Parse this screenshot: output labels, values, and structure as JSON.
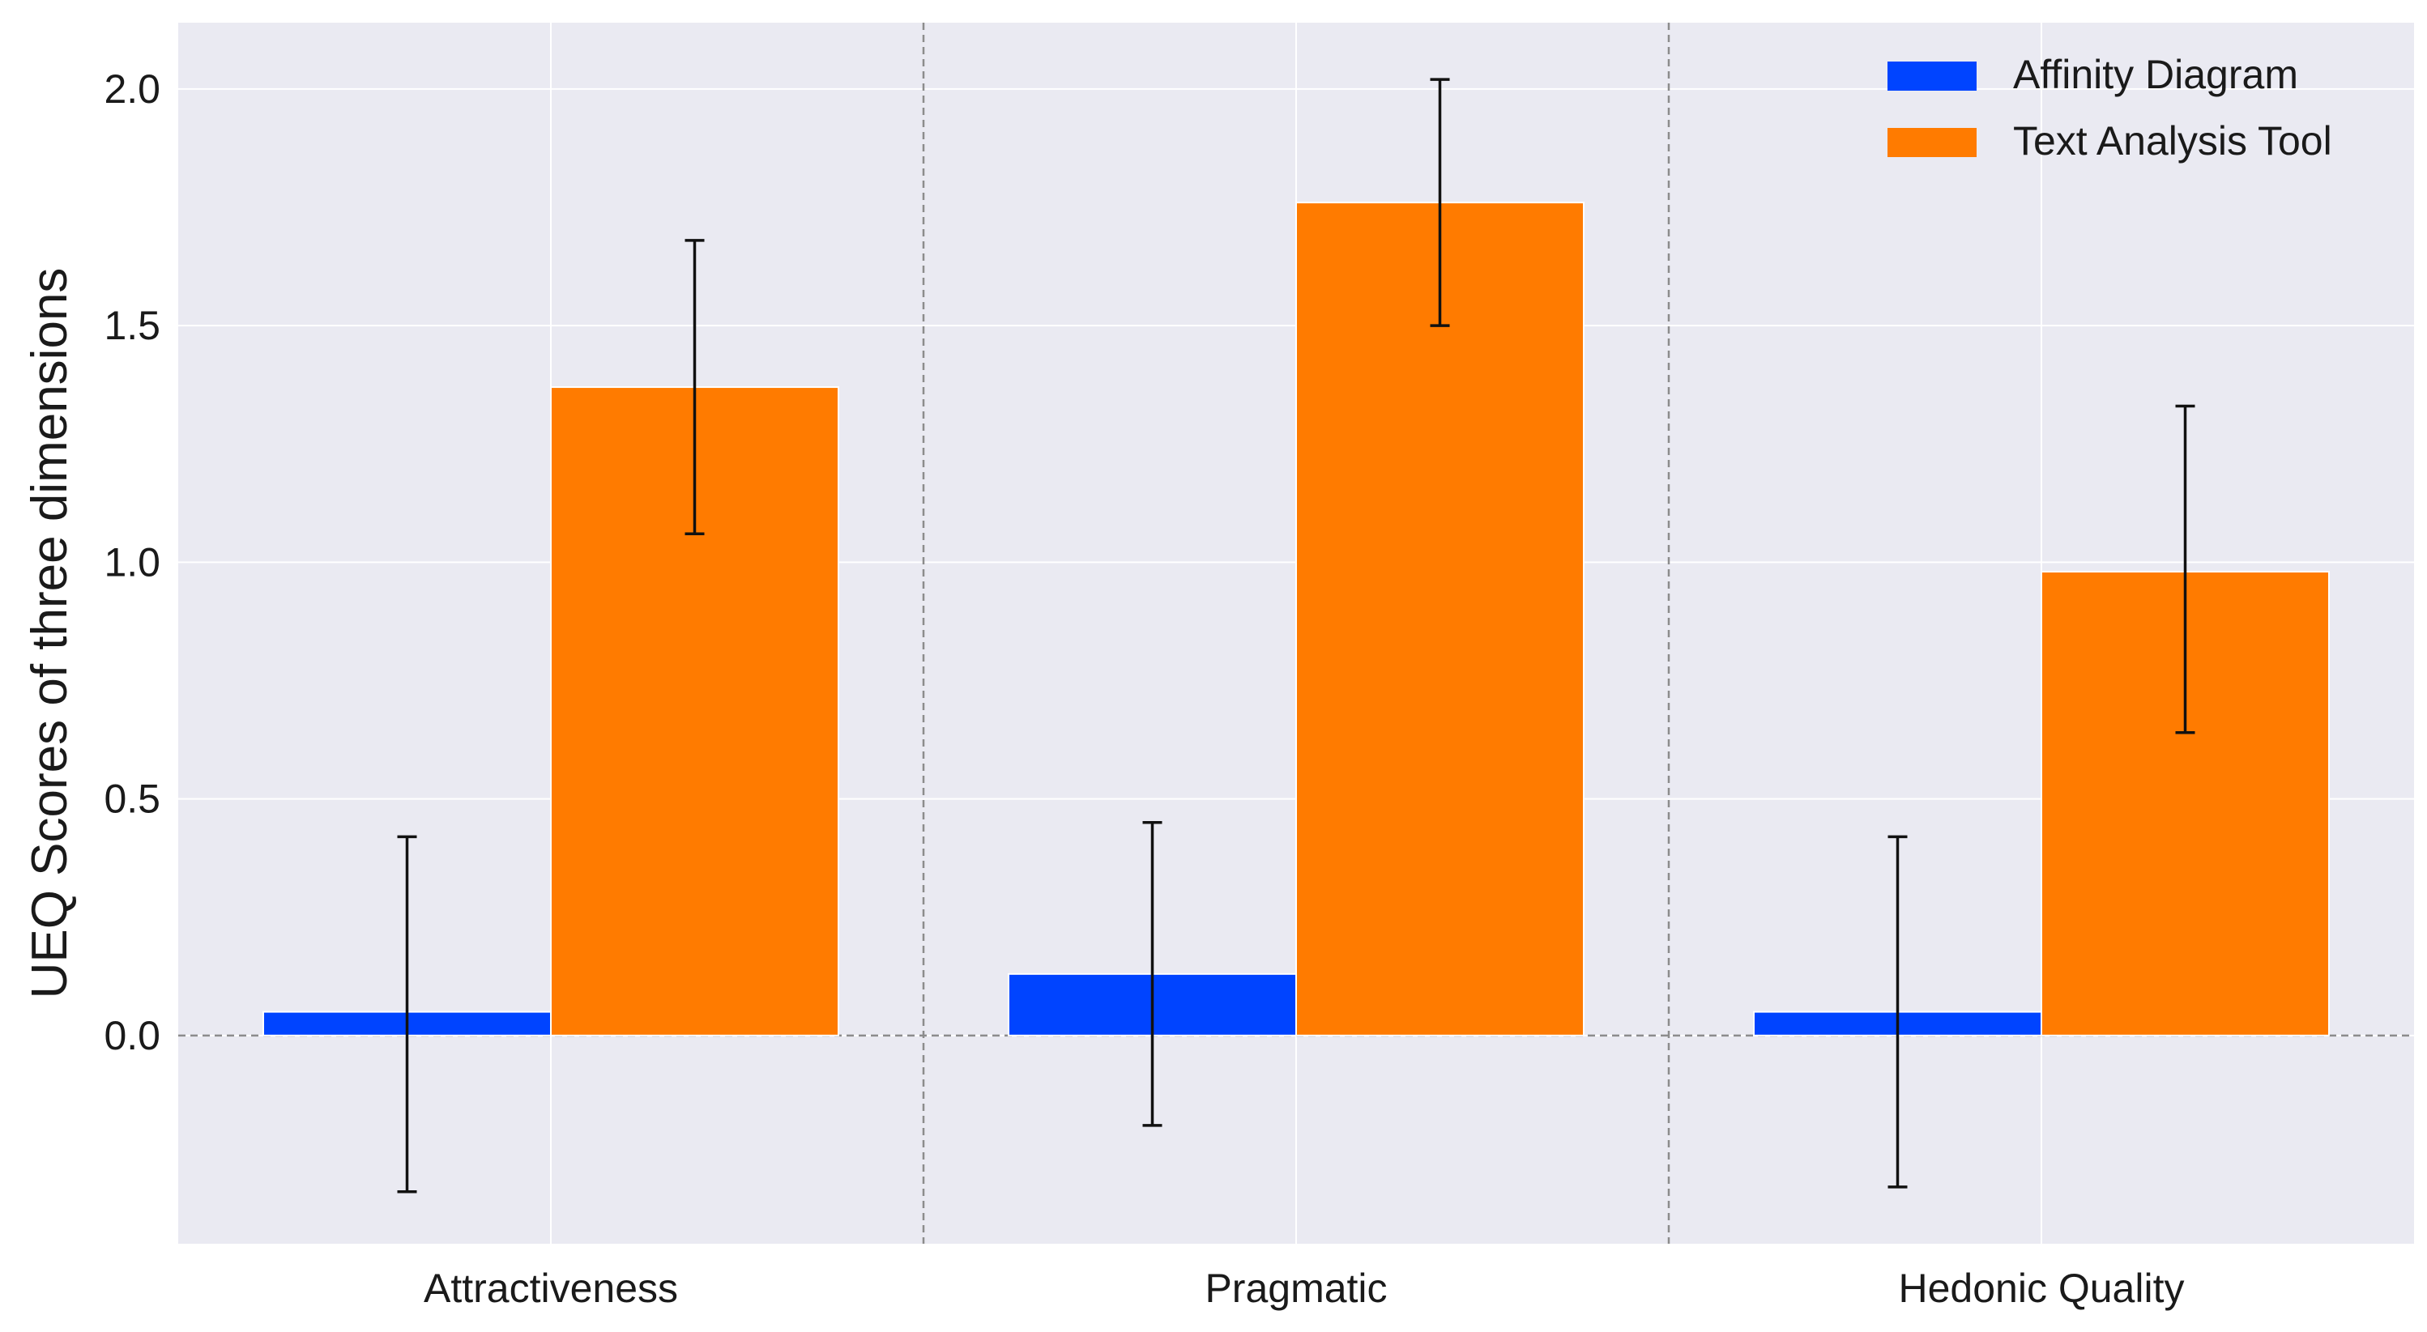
{
  "chart_data": {
    "type": "bar",
    "title": "",
    "xlabel": "",
    "ylabel": "UEQ Scores of three dimensions",
    "categories": [
      "Attractiveness",
      "Pragmatic",
      "Hedonic Quality"
    ],
    "series": [
      {
        "name": "Affinity Diagram",
        "color": "#0044ff",
        "values": [
          0.05,
          0.13,
          0.05
        ],
        "err_low": [
          -0.33,
          -0.19,
          -0.32
        ],
        "err_high": [
          0.42,
          0.45,
          0.42
        ]
      },
      {
        "name": "Text Analysis Tool",
        "color": "#ff7b00",
        "values": [
          1.37,
          1.76,
          0.98
        ],
        "err_low": [
          1.06,
          1.5,
          0.64
        ],
        "err_high": [
          1.68,
          2.02,
          1.33
        ]
      }
    ],
    "yticks": [
      0.0,
      0.5,
      1.0,
      1.5,
      2.0
    ],
    "ytick_labels": [
      "0.0",
      "0.5",
      "1.0",
      "1.5",
      "2.0"
    ],
    "ylim": [
      -0.44,
      2.14
    ],
    "grid": true,
    "legend_position": "top-right",
    "background_color": "#eaeaf2",
    "grid_color": "#ffffff",
    "reference_line": 0.0
  }
}
